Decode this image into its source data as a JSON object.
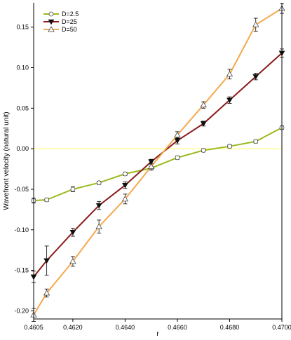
{
  "chart_data": {
    "type": "line",
    "xlabel": "r",
    "ylabel": "Wavefront velocity (natural unit)",
    "xlim": [
      0.4605,
      0.47
    ],
    "ylim": [
      -0.21,
      0.18
    ],
    "x_ticks": [
      "0.4605",
      "0.4620",
      "0.4640",
      "0.4660",
      "0.4680",
      "0.4700"
    ],
    "x_tick_values": [
      0.4605,
      0.462,
      0.464,
      0.466,
      0.468,
      0.47
    ],
    "y_ticks": [
      "-0.20",
      "-0.15",
      "-0.10",
      "-0.05",
      "0.00",
      "0.05",
      "0.10",
      "0.15"
    ],
    "y_tick_values": [
      -0.2,
      -0.15,
      -0.1,
      -0.05,
      0.0,
      0.05,
      0.1,
      0.15
    ],
    "reference_line": {
      "y": 0.0,
      "color": "#ffff66"
    },
    "legend_position": "top-left",
    "series": [
      {
        "name": "D=2.5",
        "marker": "circle",
        "color": "#9aba1e",
        "x": [
          0.4605,
          0.461,
          0.462,
          0.463,
          0.464,
          0.465,
          0.466,
          0.467,
          0.468,
          0.469,
          0.47
        ],
        "y": [
          -0.064,
          -0.063,
          -0.05,
          -0.042,
          -0.031,
          -0.024,
          -0.011,
          -0.002,
          0.003,
          0.009,
          0.026
        ],
        "err": [
          0.003,
          0.002,
          0.003,
          0.002,
          0.002,
          0.002,
          0.002,
          0.002,
          0.002,
          0.002,
          0.002
        ]
      },
      {
        "name": "D=25",
        "marker": "triangle-down",
        "color": "#8b1a1a",
        "x": [
          0.4605,
          0.461,
          0.462,
          0.463,
          0.464,
          0.465,
          0.466,
          0.467,
          0.468,
          0.469,
          0.47
        ],
        "y": [
          -0.158,
          -0.138,
          -0.103,
          -0.07,
          -0.045,
          -0.016,
          0.01,
          0.031,
          0.06,
          0.089,
          0.118
        ],
        "err": [
          0.007,
          0.018,
          0.005,
          0.005,
          0.004,
          0.003,
          0.004,
          0.003,
          0.004,
          0.004,
          0.005
        ]
      },
      {
        "name": "D=50",
        "marker": "triangle-up",
        "color": "#f4a94e",
        "x": [
          0.4605,
          0.461,
          0.462,
          0.463,
          0.464,
          0.465,
          0.466,
          0.467,
          0.468,
          0.469,
          0.47
        ],
        "y": [
          -0.205,
          -0.178,
          -0.139,
          -0.096,
          -0.062,
          -0.022,
          0.017,
          0.054,
          0.092,
          0.153,
          0.173
        ],
        "err": [
          0.008,
          0.005,
          0.006,
          0.008,
          0.006,
          0.004,
          0.004,
          0.004,
          0.006,
          0.008,
          0.006
        ]
      }
    ]
  }
}
